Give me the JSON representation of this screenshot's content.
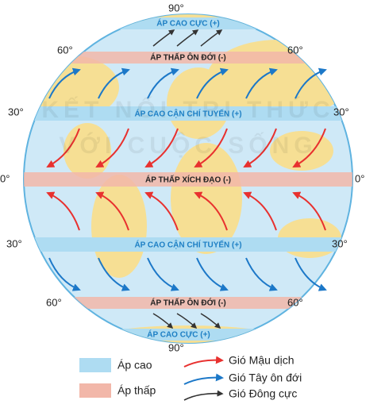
{
  "latitudes": {
    "top": "90°",
    "n60_left": "60°",
    "n60_right": "60°",
    "n30_left": "30°",
    "n30_right": "30°",
    "eq_left": "0°",
    "eq_right": "0°",
    "s30_left": "30°",
    "s30_right": "30°",
    "s60_left": "60°",
    "s60_right": "60°",
    "bottom": "90°"
  },
  "belts": [
    "ÁP CAO CỰC (+)",
    "ÁP THẤP ÔN ĐỚI (-)",
    "ÁP CAO CẬN CHÍ TUYẾN (+)",
    "ÁP THẤP XÍCH ĐẠO (-)",
    "ÁP CAO CẬN CHÍ TUYẾN (+)",
    "ÁP THẤP ÔN ĐỚI (-)",
    "ÁP CAO CỰC (+)"
  ],
  "watermark": [
    "KẾT NỐI TRI THỨC",
    "VỚI CUỘC SỐNG"
  ],
  "legend": {
    "high": "Áp cao",
    "low": "Áp thấp",
    "trade": "Gió Mậu dịch",
    "westerly": "Gió Tây ôn đới",
    "polar": "Gió Đông cực"
  }
}
